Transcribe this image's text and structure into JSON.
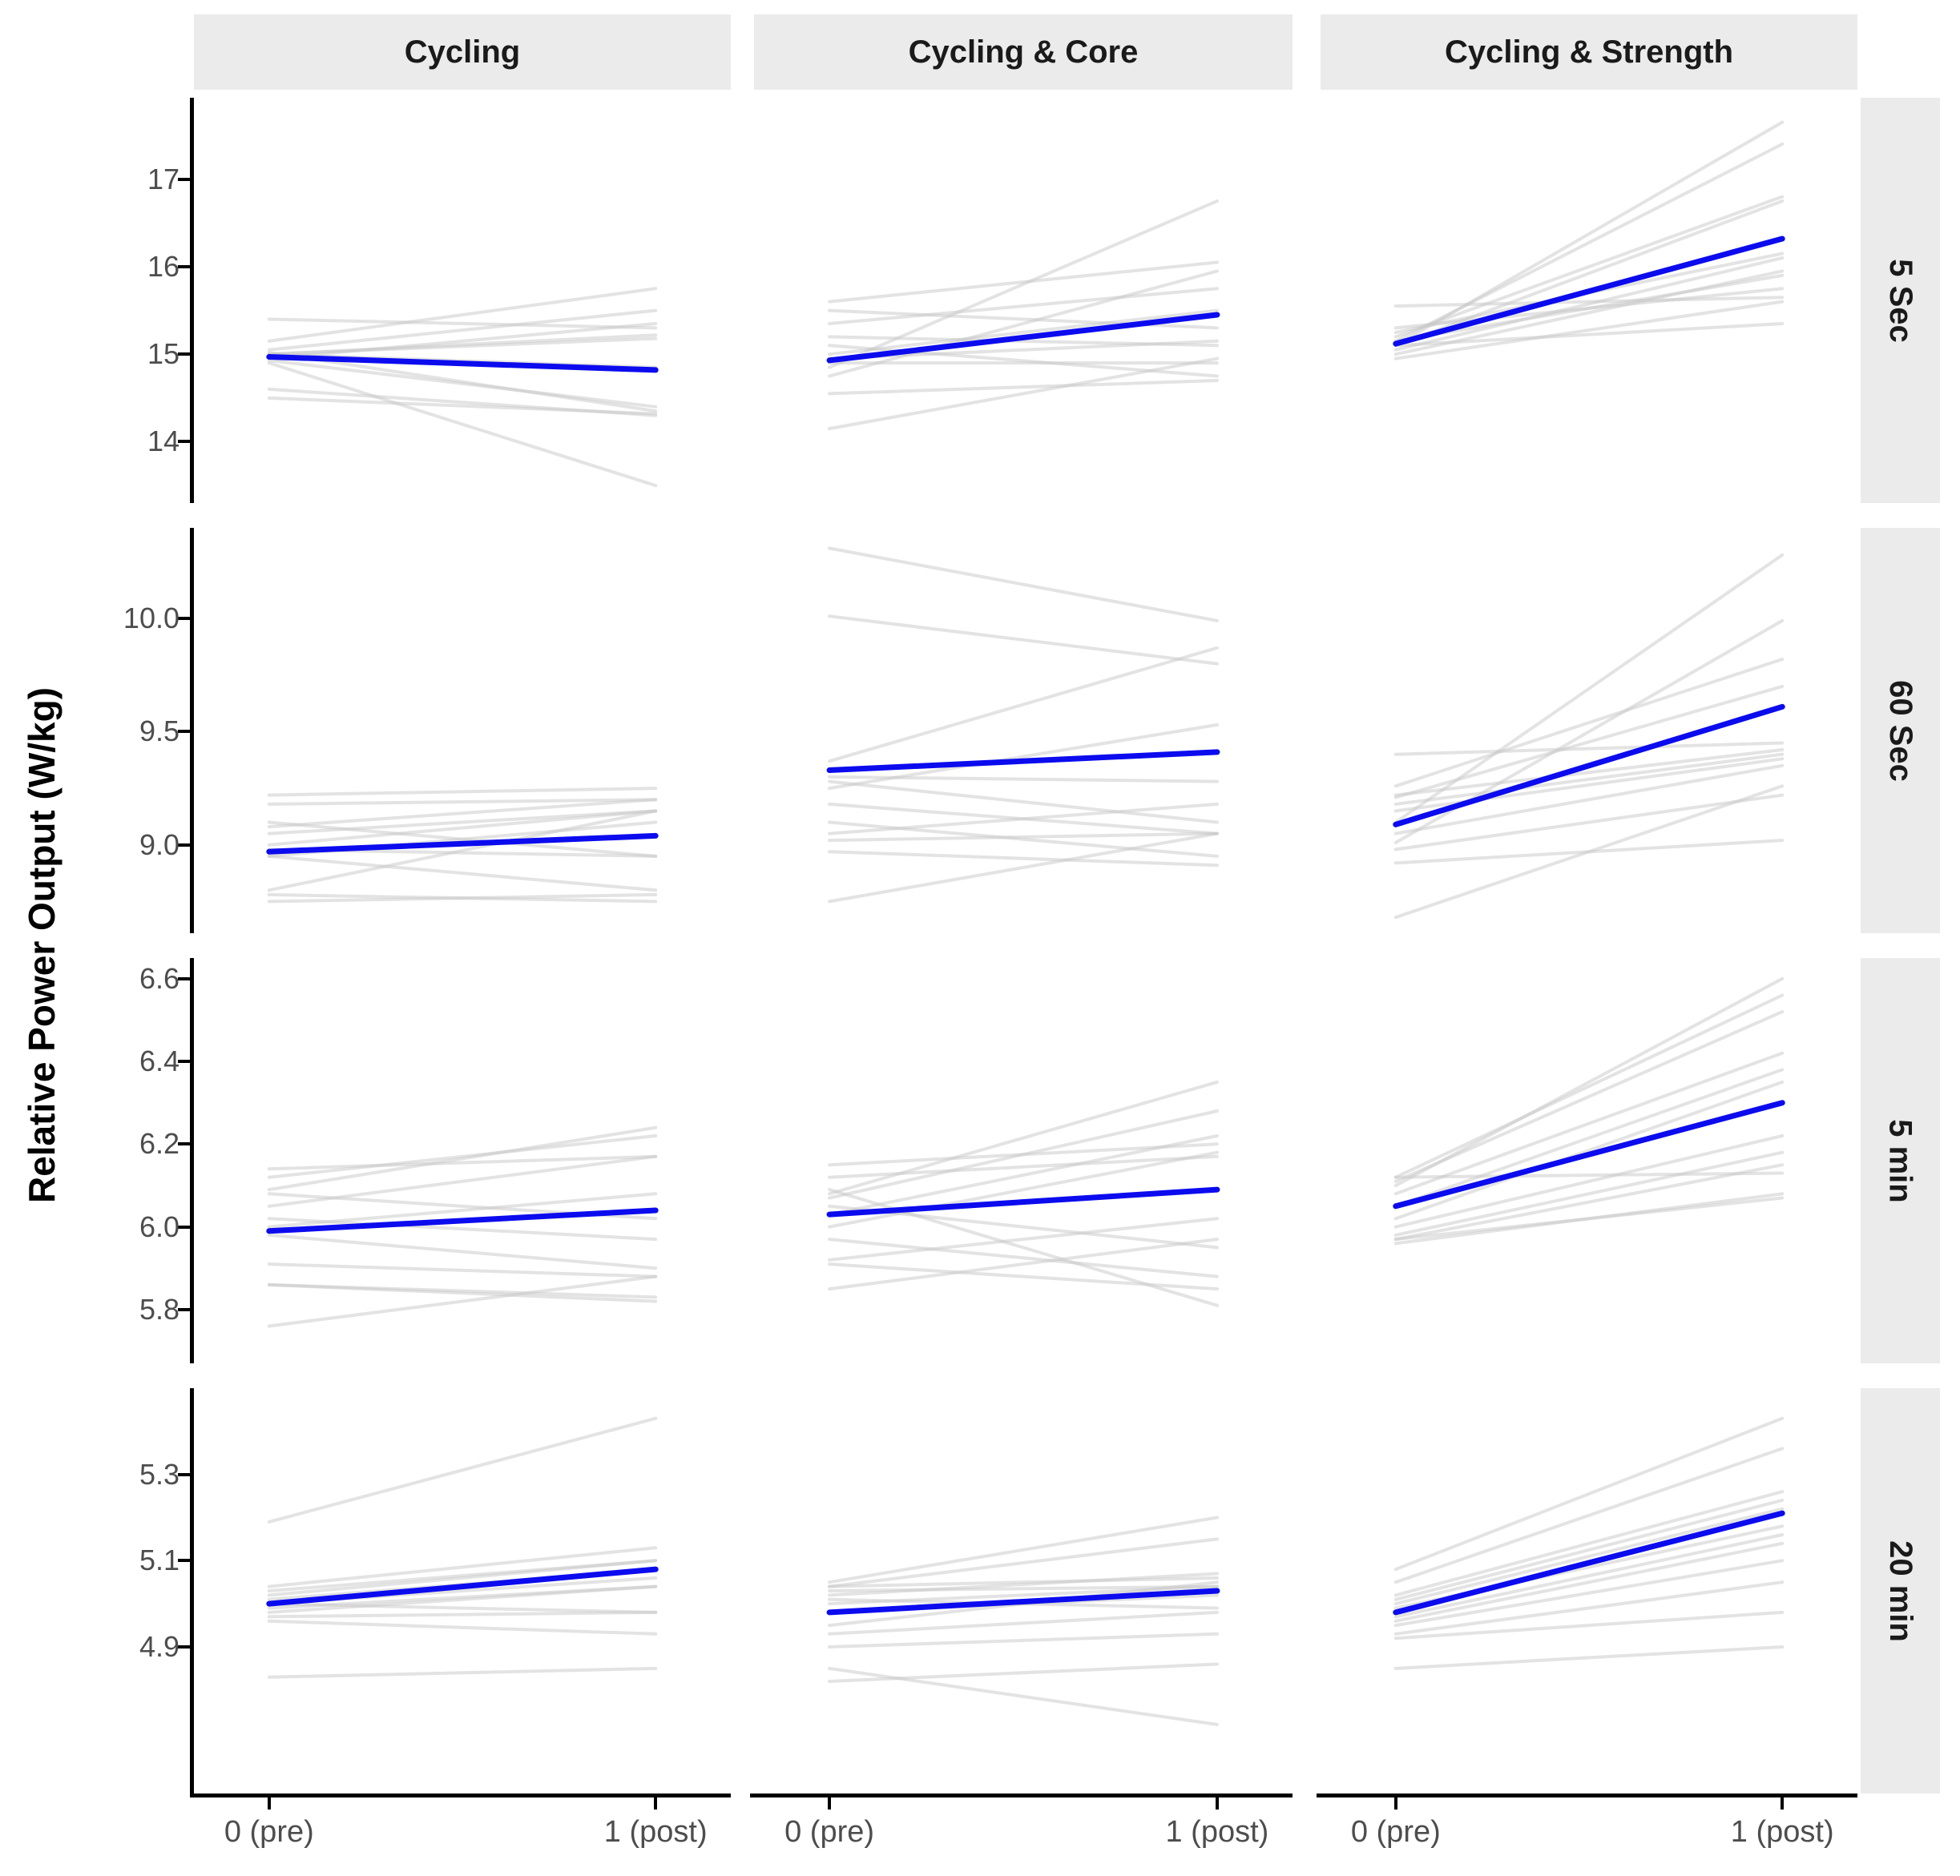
{
  "chart_data": {
    "type": "line",
    "title": "",
    "ylabel": "Relative Power Output (W/kg)",
    "x_labels": [
      "0 (pre)",
      "1 (post)"
    ],
    "x_values": [
      0,
      1
    ],
    "legend_position": "none",
    "grid": false,
    "colors": {
      "mean_line": "#0b0bee",
      "subject_line": "#c8c8c8",
      "strip_background": "#ebebeb",
      "strip_text": "#1a1a1a",
      "axis_text": "#4d4d4d",
      "axis_line": "#000000"
    },
    "columns": [
      "Cycling",
      "Cycling & Core",
      "Cycling & Strength"
    ],
    "rows": [
      {
        "label": "5 Sec",
        "ylim": [
          13.3,
          17.93
        ],
        "yticks": [
          {
            "value": 14,
            "label": "14"
          },
          {
            "value": 15,
            "label": "15"
          },
          {
            "value": 16,
            "label": "16"
          },
          {
            "value": 17,
            "label": "17"
          }
        ]
      },
      {
        "label": "60 Sec",
        "ylim": [
          8.61,
          10.4
        ],
        "yticks": [
          {
            "value": 9.0,
            "label": "9.0"
          },
          {
            "value": 9.5,
            "label": "9.5"
          },
          {
            "value": 10.0,
            "label": "10.0"
          }
        ]
      },
      {
        "label": "5 min",
        "ylim": [
          5.67,
          6.65
        ],
        "yticks": [
          {
            "value": 5.8,
            "label": "5.8"
          },
          {
            "value": 6.0,
            "label": "6.0"
          },
          {
            "value": 6.2,
            "label": "6.2"
          },
          {
            "value": 6.4,
            "label": "6.4"
          },
          {
            "value": 6.6,
            "label": "6.6"
          }
        ]
      },
      {
        "label": "20 min",
        "ylim": [
          4.56,
          5.5
        ],
        "yticks": [
          {
            "value": 4.9,
            "label": "4.9"
          },
          {
            "value": 5.1,
            "label": "5.1"
          },
          {
            "value": 5.3,
            "label": "5.3"
          }
        ]
      }
    ],
    "panels": [
      {
        "row": 0,
        "col": 0,
        "mean": [
          14.97,
          14.82
        ],
        "lines": [
          [
            15.4,
            15.3
          ],
          [
            15.15,
            15.75
          ],
          [
            15.05,
            15.5
          ],
          [
            15.0,
            15.22
          ],
          [
            15.0,
            15.18
          ],
          [
            15.0,
            14.85
          ],
          [
            15.02,
            14.35
          ],
          [
            14.95,
            15.35
          ],
          [
            14.93,
            14.4
          ],
          [
            14.9,
            13.5
          ],
          [
            14.6,
            14.3
          ],
          [
            14.5,
            14.32
          ]
        ]
      },
      {
        "row": 0,
        "col": 1,
        "mean": [
          14.93,
          15.45
        ],
        "lines": [
          [
            15.6,
            16.05
          ],
          [
            15.5,
            15.3
          ],
          [
            15.35,
            15.75
          ],
          [
            15.2,
            15.1
          ],
          [
            15.1,
            14.75
          ],
          [
            15.0,
            15.5
          ],
          [
            14.95,
            15.15
          ],
          [
            14.9,
            14.9
          ],
          [
            14.85,
            16.75
          ],
          [
            14.75,
            15.95
          ],
          [
            14.55,
            14.7
          ],
          [
            14.15,
            14.95
          ]
        ]
      },
      {
        "row": 0,
        "col": 2,
        "mean": [
          15.12,
          16.32
        ],
        "lines": [
          [
            15.1,
            17.65
          ],
          [
            15.15,
            17.4
          ],
          [
            15.2,
            16.8
          ],
          [
            15.1,
            16.75
          ],
          [
            15.25,
            16.15
          ],
          [
            15.05,
            16.1
          ],
          [
            15.0,
            15.95
          ],
          [
            15.15,
            15.9
          ],
          [
            15.3,
            15.75
          ],
          [
            15.55,
            15.65
          ],
          [
            14.95,
            15.6
          ],
          [
            15.1,
            15.35
          ]
        ]
      },
      {
        "row": 1,
        "col": 0,
        "mean": [
          8.97,
          9.04
        ],
        "lines": [
          [
            9.22,
            9.25
          ],
          [
            9.18,
            9.2
          ],
          [
            9.1,
            8.95
          ],
          [
            9.08,
            9.2
          ],
          [
            9.05,
            9.15
          ],
          [
            9.0,
            9.15
          ],
          [
            8.98,
            8.95
          ],
          [
            8.95,
            9.1
          ],
          [
            8.95,
            8.8
          ],
          [
            8.8,
            9.15
          ],
          [
            8.78,
            8.75
          ],
          [
            8.75,
            8.78
          ]
        ]
      },
      {
        "row": 1,
        "col": 1,
        "mean": [
          9.33,
          9.41
        ],
        "lines": [
          [
            10.31,
            9.99
          ],
          [
            10.01,
            9.8
          ],
          [
            9.37,
            9.87
          ],
          [
            9.25,
            9.53
          ],
          [
            9.3,
            9.28
          ],
          [
            9.28,
            9.1
          ],
          [
            9.18,
            9.05
          ],
          [
            9.1,
            8.95
          ],
          [
            9.05,
            9.18
          ],
          [
            9.02,
            9.05
          ],
          [
            8.97,
            8.91
          ],
          [
            8.75,
            9.05
          ]
        ]
      },
      {
        "row": 1,
        "col": 2,
        "mean": [
          9.09,
          9.61
        ],
        "lines": [
          [
            9.1,
            10.28
          ],
          [
            9.01,
            9.99
          ],
          [
            9.26,
            9.82
          ],
          [
            9.21,
            9.7
          ],
          [
            9.4,
            9.45
          ],
          [
            9.22,
            9.42
          ],
          [
            9.18,
            9.4
          ],
          [
            9.15,
            9.38
          ],
          [
            9.05,
            9.35
          ],
          [
            8.98,
            9.22
          ],
          [
            8.68,
            9.26
          ],
          [
            8.92,
            9.02
          ]
        ]
      },
      {
        "row": 2,
        "col": 0,
        "mean": [
          5.99,
          6.04
        ],
        "lines": [
          [
            6.14,
            6.17
          ],
          [
            6.12,
            6.22
          ],
          [
            6.09,
            6.24
          ],
          [
            6.08,
            6.02
          ],
          [
            6.05,
            6.17
          ],
          [
            6.02,
            5.97
          ],
          [
            6.0,
            6.08
          ],
          [
            5.98,
            5.9
          ],
          [
            5.91,
            5.88
          ],
          [
            5.86,
            5.83
          ],
          [
            5.86,
            5.82
          ],
          [
            5.76,
            5.88
          ]
        ]
      },
      {
        "row": 2,
        "col": 1,
        "mean": [
          6.03,
          6.09
        ],
        "lines": [
          [
            6.15,
            6.2
          ],
          [
            6.12,
            6.17
          ],
          [
            6.08,
            6.35
          ],
          [
            6.07,
            6.28
          ],
          [
            6.05,
            5.95
          ],
          [
            6.03,
            6.22
          ],
          [
            6.0,
            6.18
          ],
          [
            5.97,
            5.88
          ],
          [
            5.92,
            6.02
          ],
          [
            5.91,
            5.85
          ],
          [
            5.85,
            5.97
          ],
          [
            6.09,
            5.81
          ]
        ]
      },
      {
        "row": 2,
        "col": 2,
        "mean": [
          6.05,
          6.3
        ],
        "lines": [
          [
            6.1,
            6.6
          ],
          [
            6.12,
            6.56
          ],
          [
            6.11,
            6.52
          ],
          [
            6.08,
            6.42
          ],
          [
            6.05,
            6.38
          ],
          [
            6.02,
            6.35
          ],
          [
            6.0,
            6.22
          ],
          [
            5.98,
            6.18
          ],
          [
            5.97,
            6.15
          ],
          [
            5.96,
            6.08
          ],
          [
            5.97,
            6.07
          ],
          [
            6.12,
            6.13
          ]
        ]
      },
      {
        "row": 3,
        "col": 0,
        "mean": [
          5.0,
          5.08
        ],
        "lines": [
          [
            5.19,
            5.43
          ],
          [
            5.04,
            5.13
          ],
          [
            5.03,
            5.1
          ],
          [
            5.02,
            5.1
          ],
          [
            5.01,
            5.08
          ],
          [
            5.0,
            5.06
          ],
          [
            4.99,
            5.04
          ],
          [
            4.98,
            5.04
          ],
          [
            4.97,
            4.98
          ],
          [
            4.96,
            4.93
          ],
          [
            5.0,
            4.98
          ],
          [
            4.83,
            4.85
          ]
        ]
      },
      {
        "row": 3,
        "col": 1,
        "mean": [
          4.98,
          5.03
        ],
        "lines": [
          [
            5.05,
            5.2
          ],
          [
            5.04,
            5.15
          ],
          [
            5.04,
            5.06
          ],
          [
            5.03,
            5.04
          ],
          [
            5.02,
            5.07
          ],
          [
            5.01,
            4.99
          ],
          [
            5.0,
            5.04
          ],
          [
            4.98,
            5.02
          ],
          [
            4.95,
            5.05
          ],
          [
            4.93,
            4.98
          ],
          [
            4.9,
            4.93
          ],
          [
            4.85,
            4.72
          ],
          [
            4.82,
            4.86
          ]
        ]
      },
      {
        "row": 3,
        "col": 2,
        "mean": [
          4.98,
          5.21
        ],
        "lines": [
          [
            5.08,
            5.43
          ],
          [
            5.05,
            5.36
          ],
          [
            5.02,
            5.26
          ],
          [
            5.01,
            5.24
          ],
          [
            5.0,
            5.22
          ],
          [
            4.99,
            5.18
          ],
          [
            4.97,
            5.16
          ],
          [
            4.96,
            5.14
          ],
          [
            4.95,
            5.1
          ],
          [
            4.93,
            5.05
          ],
          [
            4.92,
            4.98
          ],
          [
            4.85,
            4.9
          ]
        ]
      }
    ]
  }
}
